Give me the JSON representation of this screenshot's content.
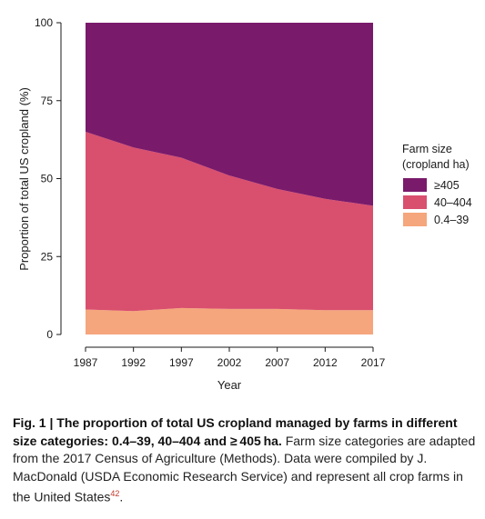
{
  "chart_data": {
    "type": "area",
    "stacked": true,
    "x": [
      1987,
      1992,
      1997,
      2002,
      2007,
      2012,
      2017
    ],
    "xlabel": "Year",
    "ylabel": "Proportion of total US cropland (%)",
    "xlim": [
      1987,
      2017
    ],
    "ylim": [
      0,
      100
    ],
    "yticks": [
      0,
      25,
      50,
      75,
      100
    ],
    "grid": false,
    "legend_position": "right",
    "legend_title_line1": "Farm size",
    "legend_title_line2": "(cropland ha)",
    "series": [
      {
        "name": "0.4–39",
        "color": "#f5a67c",
        "values": [
          8,
          7.5,
          8.5,
          8.2,
          8.2,
          7.8,
          7.8
        ]
      },
      {
        "name": "40–404",
        "color": "#d94f6e",
        "values": [
          57,
          52.5,
          48.2,
          42.8,
          38.5,
          35.7,
          33.5
        ]
      },
      {
        "name": "≥405",
        "color": "#7a1a6b",
        "values": [
          35,
          40,
          43.3,
          49,
          53.3,
          56.5,
          58.7
        ]
      }
    ],
    "legend_order": [
      "≥405",
      "40–404",
      "0.4–39"
    ]
  },
  "caption": {
    "label": "Fig. 1 | ",
    "bold_text": "The proportion of total US cropland managed by farms in different size categories: 0.4–39, 40–404 and ≥ 405 ha.",
    "body": " Farm size categories are adapted from the 2017 Census of Agriculture (Methods). Data were compiled by J. MacDonald (USDA Economic Research Service) and represent all crop farms in the United States",
    "ref": "42",
    "end": "."
  }
}
